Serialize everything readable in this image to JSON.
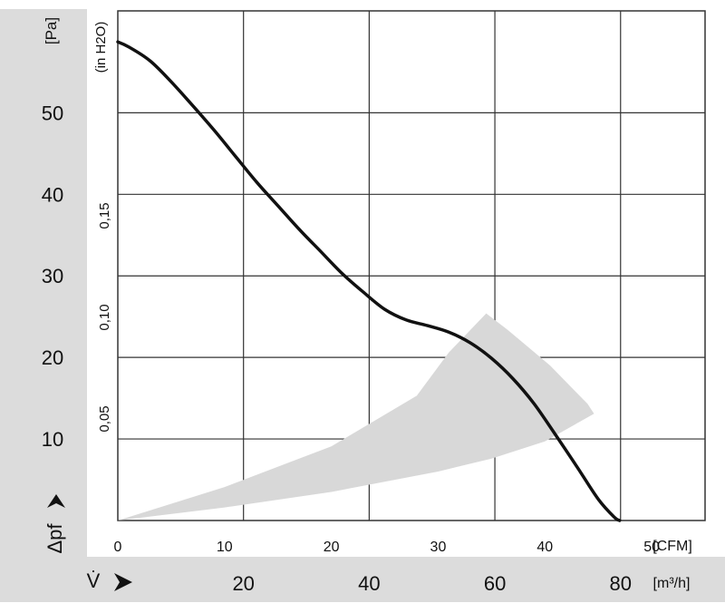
{
  "chart_data": {
    "type": "line",
    "title": "",
    "y_unit_pa": "[Pa]",
    "y_unit_inh2o": "(in H2O)",
    "y_symbol": "Δpf",
    "x_symbol": "V̇",
    "x_unit_cfm": "[CFM]",
    "x_unit_m3h": "[m³/h]",
    "grid": true,
    "x_cfm_range": [
      0,
      55
    ],
    "y_pa_range": [
      0,
      62.5
    ],
    "x_cfm_ticks": [
      "0",
      "10",
      "20",
      "30",
      "40",
      "50"
    ],
    "x_m3h_ticks": [
      "20",
      "40",
      "60",
      "80"
    ],
    "y_pa_ticks": [
      "10",
      "20",
      "30",
      "40",
      "50"
    ],
    "y_inh2o_ticks": [
      "0,05",
      "0,10",
      "0,15"
    ],
    "series": [
      {
        "x_cfm": [
          0,
          1,
          3,
          5,
          7,
          9,
          11,
          13,
          15,
          17,
          19,
          21,
          23,
          25,
          27,
          29,
          31,
          33,
          35,
          37,
          39,
          41,
          43,
          45,
          46.5,
          47
        ],
        "y_pa": [
          58.7,
          58.1,
          56.4,
          53.8,
          50.9,
          47.9,
          44.7,
          41.5,
          38.6,
          35.7,
          33.0,
          30.3,
          28.0,
          25.9,
          24.6,
          23.9,
          23.1,
          21.8,
          19.9,
          17.4,
          14.3,
          10.5,
          6.6,
          2.6,
          0.4,
          0
        ]
      }
    ],
    "operating_zone": {
      "outer": [
        [
          0,
          0
        ],
        [
          10,
          4.1
        ],
        [
          20,
          9.1
        ],
        [
          28,
          15.3
        ],
        [
          31,
          20.6
        ],
        [
          34.5,
          25.4
        ]
      ],
      "arc": [
        [
          34.5,
          25.4
        ],
        [
          36.5,
          23.4
        ],
        [
          38.5,
          21.2
        ],
        [
          40.5,
          19.0
        ],
        [
          42.5,
          16.3
        ],
        [
          44,
          14.3
        ],
        [
          44.6,
          13.1
        ]
      ],
      "inner": [
        [
          44.6,
          13.1
        ],
        [
          40,
          9.7
        ],
        [
          35,
          7.6
        ],
        [
          30,
          6.0
        ],
        [
          20,
          3.5
        ],
        [
          10,
          1.6
        ],
        [
          0,
          0
        ]
      ],
      "color": "#d8d8d8"
    },
    "colors": {
      "curve": "#111111",
      "grid": "#333333",
      "gray_band": "#dcdcdc"
    }
  }
}
